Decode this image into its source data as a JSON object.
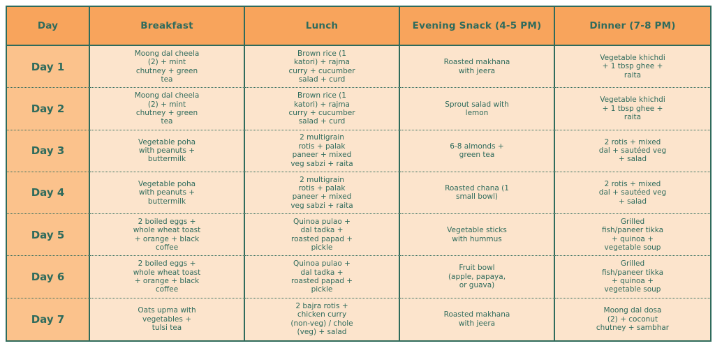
{
  "colors": {
    "border_and_text": "#2f6b5c",
    "header_background": "#f8a45c",
    "day_column_background": "#fbc28c",
    "cell_background": "#fce4cc"
  },
  "table": {
    "columns": [
      "Day",
      "Breakfast",
      "Lunch",
      "Evening Snack (4-5 PM)",
      "Dinner (7-8 PM)"
    ],
    "rows": [
      {
        "day": "Day 1",
        "breakfast": "Moong dal cheela\n(2) + mint\nchutney + green\ntea",
        "lunch": "Brown rice (1\nkatori) + rajma\ncurry + cucumber\nsalad + curd",
        "snack": "Roasted makhana\nwith jeera",
        "dinner": "Vegetable khichdi\n+ 1 tbsp ghee +\nraita"
      },
      {
        "day": "Day 2",
        "breakfast": "Moong dal cheela\n(2) + mint\nchutney + green\ntea",
        "lunch": "Brown rice (1\nkatori) + rajma\ncurry + cucumber\nsalad + curd",
        "snack": "Sprout salad with\nlemon",
        "dinner": "Vegetable khichdi\n+ 1 tbsp ghee +\nraita"
      },
      {
        "day": "Day 3",
        "breakfast": "Vegetable poha\nwith peanuts +\nbuttermilk",
        "lunch": "2 multigrain\nrotis + palak\npaneer + mixed\nveg sabzi + raita",
        "snack": "6-8 almonds +\ngreen tea",
        "dinner": "2 rotis + mixed\ndal + sautéed veg\n+ salad"
      },
      {
        "day": "Day 4",
        "breakfast": "Vegetable poha\nwith peanuts +\nbuttermilk",
        "lunch": "2 multigrain\nrotis + palak\npaneer + mixed\nveg sabzi + raita",
        "snack": "Roasted chana (1\nsmall bowl)",
        "dinner": "2 rotis + mixed\ndal + sautéed veg\n+ salad"
      },
      {
        "day": "Day 5",
        "breakfast": "2 boiled eggs +\nwhole wheat toast\n+ orange + black\ncoffee",
        "lunch": "Quinoa pulao +\ndal tadka +\nroasted papad +\npickle",
        "snack": "Vegetable sticks\nwith hummus",
        "dinner": "Grilled\nfish/paneer tikka\n+ quinoa +\nvegetable soup"
      },
      {
        "day": "Day 6",
        "breakfast": "2 boiled eggs +\nwhole wheat toast\n+ orange + black\ncoffee",
        "lunch": "Quinoa pulao +\ndal tadka +\nroasted papad +\npickle",
        "snack": "Fruit bowl\n(apple, papaya,\nor guava)",
        "dinner": "Grilled\nfish/paneer tikka\n+ quinoa +\nvegetable soup"
      },
      {
        "day": "Day 7",
        "breakfast": "Oats upma with\nvegetables +\ntulsi tea",
        "lunch": "2 bajra rotis +\nchicken curry\n(non-veg) / chole\n(veg) + salad",
        "snack": "Roasted makhana\nwith jeera",
        "dinner": "Moong dal dosa\n(2) + coconut\nchutney + sambhar"
      }
    ]
  }
}
